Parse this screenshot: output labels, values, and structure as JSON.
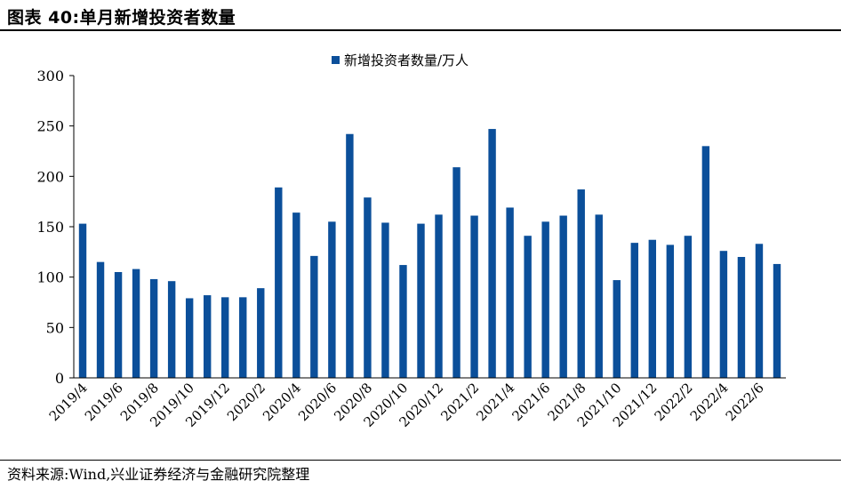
{
  "header": {
    "title": "图表 40:单月新增投资者数量"
  },
  "footer": {
    "source": "资料来源:Wind,兴业证券经济与金融研究院整理"
  },
  "chart_data": {
    "type": "bar",
    "series": [
      {
        "name": "新增投资者数量/万人",
        "color": "#0b4f9a",
        "values": [
          153,
          115,
          105,
          108,
          98,
          96,
          79,
          82,
          80,
          80,
          89,
          189,
          164,
          121,
          155,
          242,
          179,
          154,
          112,
          153,
          162,
          209,
          161,
          247,
          169,
          141,
          155,
          161,
          187,
          162,
          97,
          134,
          137,
          132,
          141,
          230,
          126,
          120,
          133,
          113
        ]
      }
    ],
    "categories": [
      "2019/4",
      "2019/5",
      "2019/6",
      "2019/7",
      "2019/8",
      "2019/9",
      "2019/10",
      "2019/11",
      "2019/12",
      "2020/1",
      "2020/2",
      "2020/3",
      "2020/4",
      "2020/5",
      "2020/6",
      "2020/7",
      "2020/8",
      "2020/9",
      "2020/10",
      "2020/11",
      "2020/12",
      "2021/1",
      "2021/2",
      "2021/3",
      "2021/4",
      "2021/5",
      "2021/6",
      "2021/7",
      "2021/8",
      "2021/9",
      "2021/10",
      "2021/11",
      "2021/12",
      "2022/1",
      "2022/2",
      "2022/3",
      "2022/4",
      "2022/5",
      "2022/6",
      "2022/7"
    ],
    "x_tick_labels": [
      "2019/4",
      "2019/6",
      "2019/8",
      "2019/10",
      "2019/12",
      "2020/2",
      "2020/4",
      "2020/6",
      "2020/8",
      "2020/10",
      "2020/12",
      "2021/2",
      "2021/4",
      "2021/6",
      "2021/8",
      "2021/10",
      "2021/12",
      "2022/2",
      "2022/4",
      "2022/6"
    ],
    "y_ticks": [
      "0",
      "50",
      "100",
      "150",
      "200",
      "250",
      "300"
    ],
    "ylim": [
      0,
      300
    ],
    "legend_position": "top-center",
    "grid": false
  }
}
